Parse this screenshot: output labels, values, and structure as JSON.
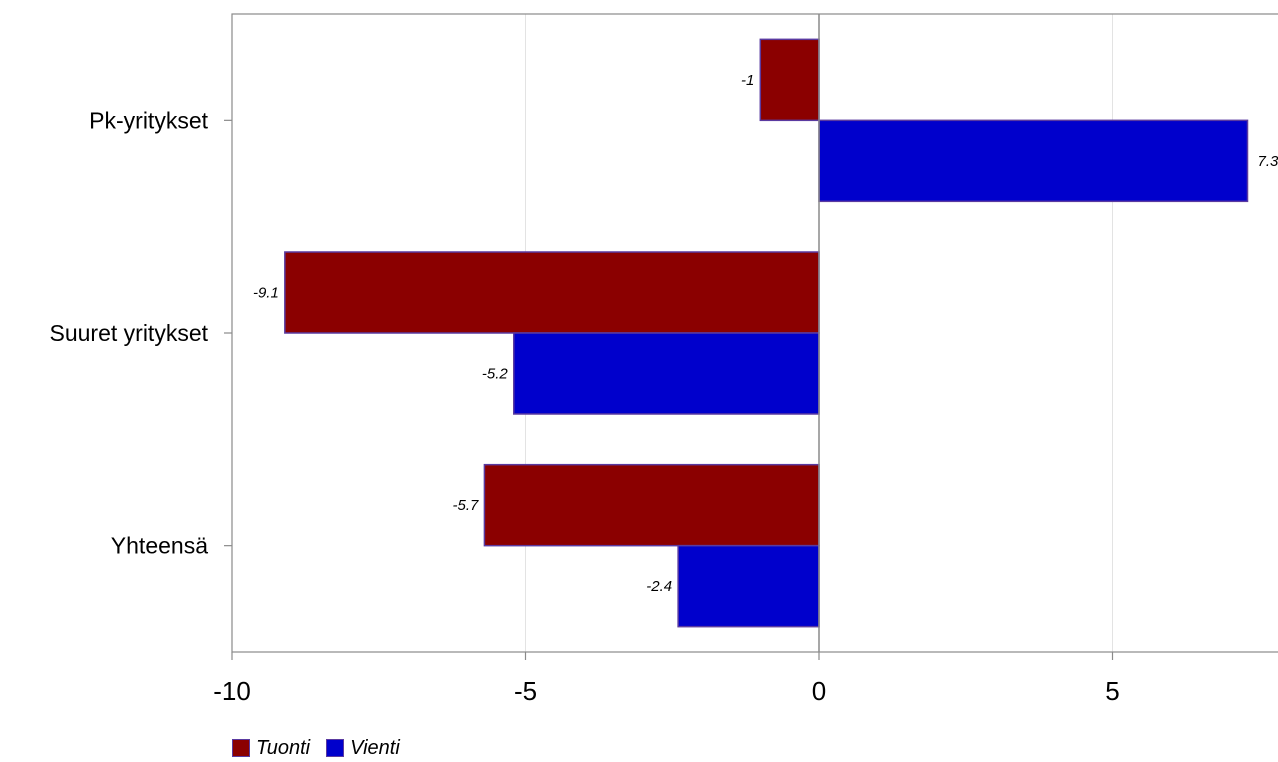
{
  "chart_data": {
    "type": "bar",
    "orientation": "horizontal",
    "title": "",
    "xlabel": "",
    "ylabel": "",
    "categories": [
      "Pk-yritykset",
      "Suuret yritykset",
      "Yhteensä"
    ],
    "series": [
      {
        "name": "Tuonti",
        "color": "#8b0000",
        "values": [
          -1,
          -9.1,
          -5.7
        ],
        "labels": [
          "-1",
          "-9.1",
          "-5.7"
        ]
      },
      {
        "name": "Vienti",
        "color": "#0000cc",
        "values": [
          7.3,
          -5.2,
          -2.4
        ],
        "labels": [
          "7.3",
          "-5.2",
          "-2.4"
        ]
      }
    ],
    "xlim": [
      -10,
      7.7
    ],
    "xticks": [
      -10,
      -5,
      0,
      5
    ],
    "xtick_labels": [
      "-10",
      "-5",
      "0",
      "5"
    ],
    "grid": true,
    "legend_position": "bottom-left"
  }
}
